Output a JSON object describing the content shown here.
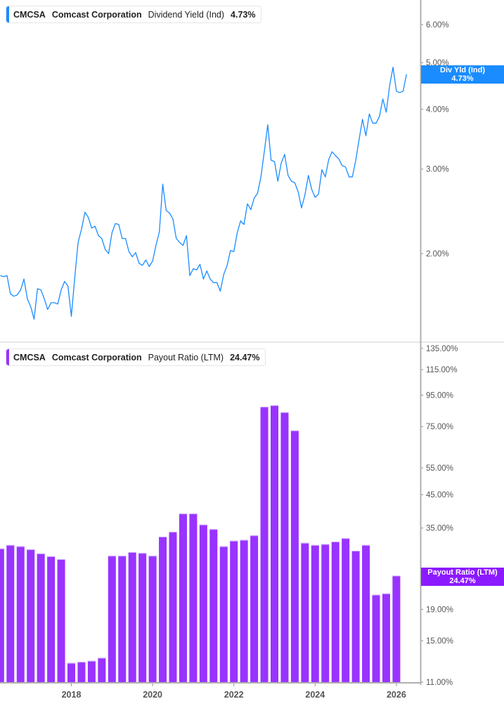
{
  "colors": {
    "yield": "#1a8cff",
    "payout": "#9933ff",
    "payout_callout": "#8c1aff",
    "axis": "#b0b0b0"
  },
  "chart_data": [
    {
      "type": "line",
      "legend": {
        "ticker": "CMCSA",
        "company": "Comcast Corporation",
        "metric": "Dividend Yield (Ind)",
        "value": "4.73%"
      },
      "callout": {
        "label": "Div Yld (Ind)",
        "value": "4.73%"
      },
      "y_scale": "log",
      "y_ticks": [
        {
          "v": 6,
          "label": "6.00%"
        },
        {
          "v": 5,
          "label": "5.00%"
        },
        {
          "v": 4,
          "label": "4.00%"
        },
        {
          "v": 3,
          "label": "3.00%"
        },
        {
          "v": 2,
          "label": "2.00%"
        }
      ],
      "ylim": [
        1.31,
        6.75
      ],
      "xlim": [
        "2016-04",
        "2026-04"
      ],
      "grid": false,
      "points": [
        [
          "2016-04",
          1.8
        ],
        [
          "2016-05",
          1.79
        ],
        [
          "2016-06",
          1.8
        ],
        [
          "2016-07",
          1.65
        ],
        [
          "2016-08",
          1.63
        ],
        [
          "2016-09",
          1.64
        ],
        [
          "2016-10",
          1.68
        ],
        [
          "2016-11",
          1.77
        ],
        [
          "2016-12",
          1.61
        ],
        [
          "2017-01",
          1.55
        ],
        [
          "2017-02",
          1.46
        ],
        [
          "2017-03",
          1.69
        ],
        [
          "2017-04",
          1.68
        ],
        [
          "2017-05",
          1.61
        ],
        [
          "2017-06",
          1.53
        ],
        [
          "2017-07",
          1.58
        ],
        [
          "2017-08",
          1.58
        ],
        [
          "2017-09",
          1.57
        ],
        [
          "2017-10",
          1.68
        ],
        [
          "2017-11",
          1.75
        ],
        [
          "2017-12",
          1.71
        ],
        [
          "2018-01",
          1.48
        ],
        [
          "2018-02",
          1.78
        ],
        [
          "2018-03",
          2.11
        ],
        [
          "2018-04",
          2.25
        ],
        [
          "2018-05",
          2.44
        ],
        [
          "2018-06",
          2.38
        ],
        [
          "2018-07",
          2.26
        ],
        [
          "2018-08",
          2.28
        ],
        [
          "2018-09",
          2.18
        ],
        [
          "2018-10",
          2.15
        ],
        [
          "2018-11",
          2.04
        ],
        [
          "2018-12",
          2.0
        ],
        [
          "2019-01",
          2.21
        ],
        [
          "2019-02",
          2.31
        ],
        [
          "2019-03",
          2.3
        ],
        [
          "2019-04",
          2.15
        ],
        [
          "2019-05",
          2.15
        ],
        [
          "2019-06",
          2.02
        ],
        [
          "2019-07",
          1.97
        ],
        [
          "2019-08",
          2.01
        ],
        [
          "2019-09",
          1.91
        ],
        [
          "2019-10",
          1.89
        ],
        [
          "2019-11",
          1.94
        ],
        [
          "2019-12",
          1.88
        ],
        [
          "2020-01",
          1.93
        ],
        [
          "2020-02",
          2.08
        ],
        [
          "2020-03",
          2.22
        ],
        [
          "2020-04",
          2.79
        ],
        [
          "2020-05",
          2.46
        ],
        [
          "2020-06",
          2.43
        ],
        [
          "2020-07",
          2.36
        ],
        [
          "2020-08",
          2.15
        ],
        [
          "2020-09",
          2.11
        ],
        [
          "2020-10",
          2.08
        ],
        [
          "2020-11",
          2.18
        ],
        [
          "2020-12",
          1.8
        ],
        [
          "2021-01",
          1.86
        ],
        [
          "2021-02",
          1.85
        ],
        [
          "2021-03",
          1.9
        ],
        [
          "2021-04",
          1.77
        ],
        [
          "2021-05",
          1.84
        ],
        [
          "2021-06",
          1.77
        ],
        [
          "2021-07",
          1.74
        ],
        [
          "2021-08",
          1.74
        ],
        [
          "2021-09",
          1.67
        ],
        [
          "2021-10",
          1.81
        ],
        [
          "2021-11",
          1.89
        ],
        [
          "2021-12",
          2.03
        ],
        [
          "2022-01",
          2.02
        ],
        [
          "2022-02",
          2.21
        ],
        [
          "2022-03",
          2.34
        ],
        [
          "2022-04",
          2.3
        ],
        [
          "2022-05",
          2.54
        ],
        [
          "2022-06",
          2.47
        ],
        [
          "2022-07",
          2.61
        ],
        [
          "2022-08",
          2.67
        ],
        [
          "2022-09",
          2.89
        ],
        [
          "2022-10",
          3.27
        ],
        [
          "2022-11",
          3.71
        ],
        [
          "2022-12",
          3.13
        ],
        [
          "2023-01",
          3.11
        ],
        [
          "2023-02",
          2.83
        ],
        [
          "2023-03",
          3.09
        ],
        [
          "2023-04",
          3.22
        ],
        [
          "2023-05",
          2.91
        ],
        [
          "2023-06",
          2.83
        ],
        [
          "2023-07",
          2.81
        ],
        [
          "2023-08",
          2.69
        ],
        [
          "2023-09",
          2.49
        ],
        [
          "2023-10",
          2.65
        ],
        [
          "2023-11",
          2.91
        ],
        [
          "2023-12",
          2.72
        ],
        [
          "2024-01",
          2.62
        ],
        [
          "2024-02",
          2.66
        ],
        [
          "2024-03",
          2.99
        ],
        [
          "2024-04",
          2.89
        ],
        [
          "2024-05",
          3.14
        ],
        [
          "2024-06",
          3.26
        ],
        [
          "2024-07",
          3.2
        ],
        [
          "2024-08",
          3.15
        ],
        [
          "2024-09",
          3.05
        ],
        [
          "2024-10",
          3.03
        ],
        [
          "2024-11",
          2.89
        ],
        [
          "2024-12",
          2.89
        ],
        [
          "2025-01",
          3.13
        ],
        [
          "2025-02",
          3.46
        ],
        [
          "2025-03",
          3.81
        ],
        [
          "2025-04",
          3.52
        ],
        [
          "2025-05",
          3.91
        ],
        [
          "2025-06",
          3.74
        ],
        [
          "2025-07",
          3.74
        ],
        [
          "2025-08",
          3.86
        ],
        [
          "2025-09",
          4.2
        ],
        [
          "2025-10",
          3.94
        ],
        [
          "2025-11",
          4.48
        ],
        [
          "2025-12",
          4.89
        ],
        [
          "2026-01",
          4.36
        ],
        [
          "2026-02",
          4.33
        ],
        [
          "2026-03",
          4.36
        ],
        [
          "2026-04",
          4.73
        ]
      ]
    },
    {
      "type": "bar",
      "legend": {
        "ticker": "CMCSA",
        "company": "Comcast Corporation",
        "metric": "Payout Ratio (LTM)",
        "value": "24.47%"
      },
      "callout": {
        "label": "Payout Ratio (LTM)",
        "value": "24.47%"
      },
      "y_scale": "log",
      "y_ticks": [
        {
          "v": 135,
          "label": "135.00%"
        },
        {
          "v": 115,
          "label": "115.00%"
        },
        {
          "v": 95,
          "label": "95.00%"
        },
        {
          "v": 75,
          "label": "75.00%"
        },
        {
          "v": 55,
          "label": "55.00%"
        },
        {
          "v": 45,
          "label": "45.00%"
        },
        {
          "v": 35,
          "label": "35.00%"
        },
        {
          "v": 19,
          "label": "19.00%"
        },
        {
          "v": 15,
          "label": "15.00%"
        },
        {
          "v": 11,
          "label": "11.00%"
        }
      ],
      "ylim": [
        11,
        135
      ],
      "x_ticks": [
        "2018",
        "2020",
        "2022",
        "2024",
        "2026"
      ],
      "grid": false,
      "categories": [
        "2016-03",
        "2016-06",
        "2016-09",
        "2016-12",
        "2017-03",
        "2017-06",
        "2017-09",
        "2017-12",
        "2018-03",
        "2018-06",
        "2018-09",
        "2018-12",
        "2019-03",
        "2019-06",
        "2019-09",
        "2019-12",
        "2020-03",
        "2020-06",
        "2020-09",
        "2020-12",
        "2021-03",
        "2021-06",
        "2021-09",
        "2021-12",
        "2022-03",
        "2022-06",
        "2022-09",
        "2022-12",
        "2023-03",
        "2023-06",
        "2023-09",
        "2023-12",
        "2024-03",
        "2024-06",
        "2024-09",
        "2024-12",
        "2025-03",
        "2025-06",
        "2025-09",
        "2025-12"
      ],
      "values": [
        30.0,
        30.8,
        30.5,
        29.8,
        28.9,
        28.3,
        27.7,
        12.7,
        12.8,
        12.9,
        13.2,
        28.4,
        28.4,
        29.2,
        29.0,
        28.4,
        32.8,
        34.0,
        39.0,
        39.0,
        35.9,
        34.7,
        30.5,
        31.8,
        32.0,
        33.1,
        87.0,
        88.0,
        83.5,
        72.8,
        31.3,
        30.8,
        31.0,
        31.6,
        32.4,
        29.5,
        30.8,
        21.2,
        21.4,
        24.47
      ]
    }
  ]
}
